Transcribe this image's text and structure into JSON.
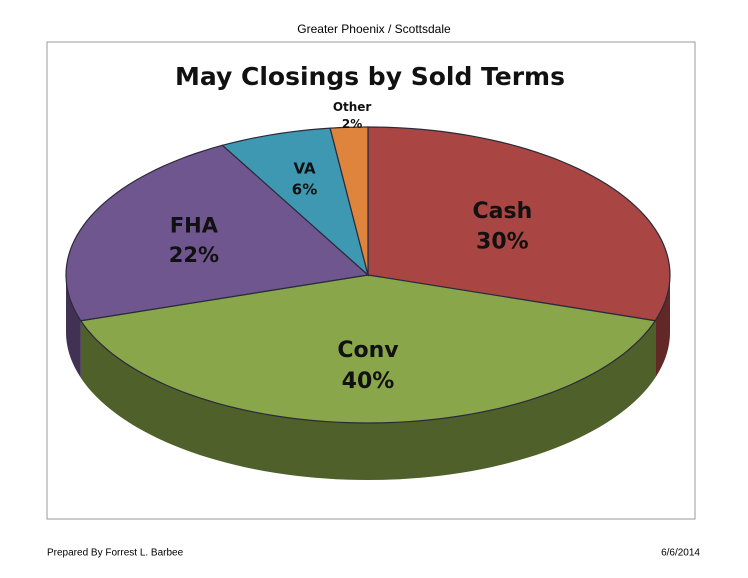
{
  "header": "Greater Phoenix / Scottsdale",
  "footer_left": "Prepared By Forrest L. Barbee",
  "footer_right": "6/6/2014",
  "chart_data": {
    "type": "pie",
    "title": "May Closings by Sold Terms",
    "categories": [
      "Cash",
      "Conv",
      "FHA",
      "VA",
      "Other"
    ],
    "values": [
      30,
      40,
      22,
      6,
      2
    ],
    "value_labels": [
      "30%",
      "40%",
      "22%",
      "6%",
      "2%"
    ],
    "colors": [
      "#a94543",
      "#8aa64b",
      "#70568f",
      "#3e98b2",
      "#df843d"
    ]
  }
}
